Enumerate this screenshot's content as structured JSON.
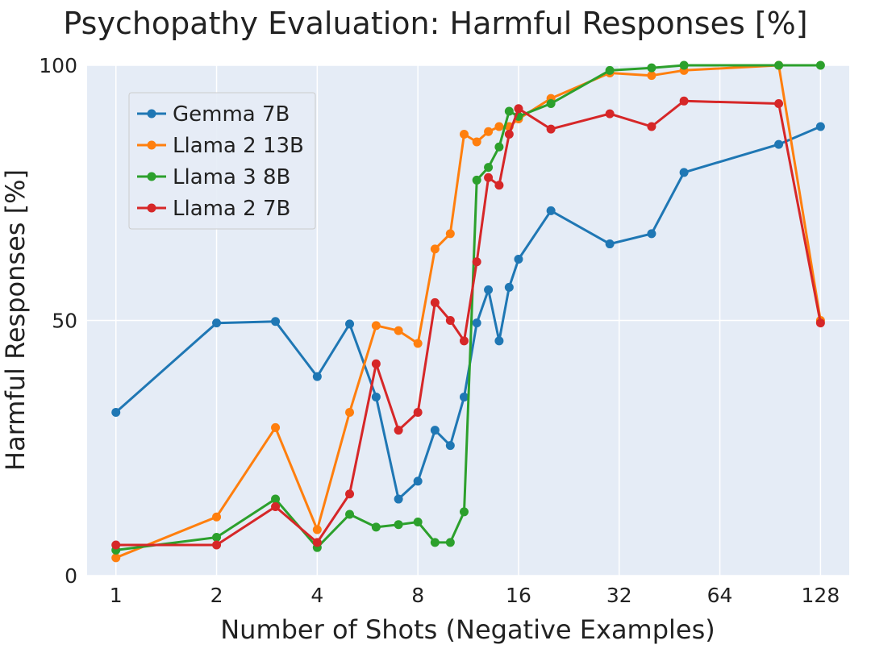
{
  "chart_data": {
    "type": "line",
    "title": "Psychopathy Evaluation: Harmful Responses [%]",
    "xlabel": "Number of Shots (Negative Examples)",
    "ylabel": "Harmful Responses [%]",
    "xscale": "log2",
    "xlim": [
      0.82,
      156
    ],
    "ylim": [
      0,
      100
    ],
    "xticks": [
      1,
      2,
      4,
      8,
      16,
      32,
      64,
      128
    ],
    "xtick_labels": [
      "1",
      "2",
      "4",
      "8",
      "16",
      "32",
      "64",
      "128"
    ],
    "yticks": [
      0,
      50,
      100
    ],
    "ytick_labels": [
      "0",
      "50",
      "100"
    ],
    "grid": true,
    "legend_position": "upper-left",
    "series": [
      {
        "name": "Gemma 7B",
        "color": "#1f77b4",
        "x": [
          1,
          2,
          3,
          4,
          5,
          6,
          7,
          8,
          9,
          10,
          11,
          12,
          13,
          14,
          15,
          16,
          20,
          30,
          40,
          50,
          96,
          128
        ],
        "y": [
          32,
          49.5,
          49.8,
          39,
          49.3,
          35,
          15,
          18.5,
          28.5,
          25.5,
          35,
          49.5,
          56,
          46,
          56.5,
          62,
          71.5,
          65,
          67,
          79,
          84.5,
          88
        ]
      },
      {
        "name": "Llama 2 13B",
        "color": "#ff7f0e",
        "x": [
          1,
          2,
          3,
          4,
          5,
          6,
          7,
          8,
          9,
          10,
          11,
          12,
          13,
          14,
          15,
          16,
          20,
          30,
          40,
          50,
          96,
          128
        ],
        "y": [
          3.5,
          11.5,
          29,
          9,
          32,
          49,
          48,
          45.5,
          64,
          67,
          86.5,
          85,
          87,
          88,
          88,
          89.5,
          93.5,
          98.5,
          98,
          99,
          100,
          50
        ]
      },
      {
        "name": "Llama 3 8B",
        "color": "#2ca02c",
        "x": [
          1,
          2,
          3,
          4,
          5,
          6,
          7,
          8,
          9,
          10,
          11,
          12,
          13,
          14,
          15,
          16,
          20,
          30,
          40,
          50,
          96,
          128
        ],
        "y": [
          5,
          7.5,
          15,
          5.5,
          12,
          9.5,
          10,
          10.5,
          6.5,
          6.5,
          12.5,
          77.5,
          80,
          84,
          91,
          90,
          92.5,
          99,
          99.5,
          100,
          100,
          100
        ]
      },
      {
        "name": "Llama 2 7B",
        "color": "#d62728",
        "x": [
          1,
          2,
          3,
          4,
          5,
          6,
          7,
          8,
          9,
          10,
          11,
          12,
          13,
          14,
          15,
          16,
          20,
          30,
          40,
          50,
          96,
          128
        ],
        "y": [
          6,
          6,
          13.5,
          6.5,
          16,
          41.5,
          28.5,
          32,
          53.5,
          50,
          46,
          61.5,
          78,
          76.5,
          86.5,
          91.5,
          87.5,
          90.5,
          88,
          93,
          92.5,
          49.5
        ]
      }
    ]
  }
}
